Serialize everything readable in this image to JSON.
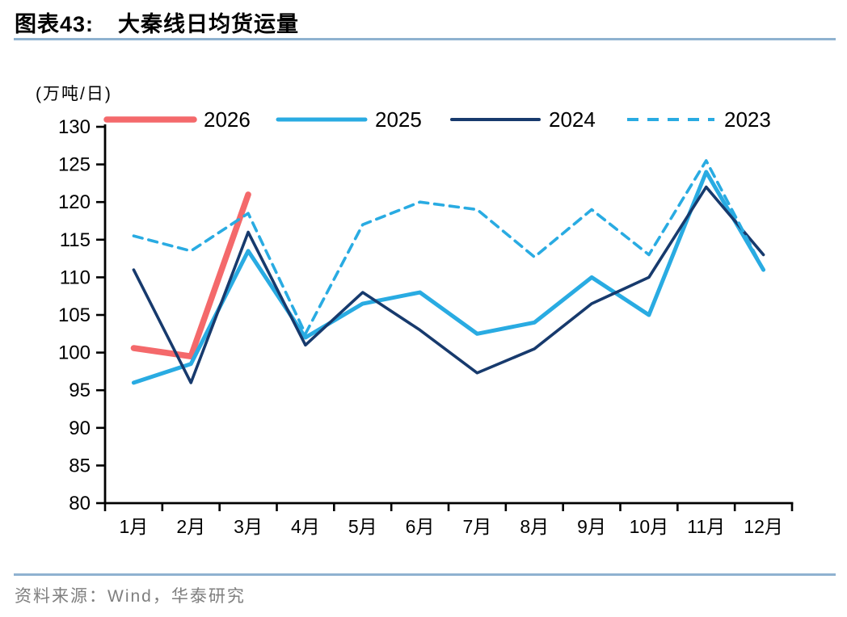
{
  "header": {
    "figure_label": "图表43:",
    "title": "大秦线日均货运量"
  },
  "footer": {
    "source": "资料来源：Wind，华泰研究"
  },
  "accent_rule_color": "#8FB2D0",
  "chart_data": {
    "type": "line",
    "title": "大秦线日均货运量",
    "unit_label": "(万吨/日)",
    "xlabel": "",
    "ylabel": "万吨/日",
    "categories": [
      "1月",
      "2月",
      "3月",
      "4月",
      "5月",
      "6月",
      "7月",
      "8月",
      "9月",
      "10月",
      "11月",
      "12月"
    ],
    "ylim": [
      80,
      130
    ],
    "ytick_step": 5,
    "grid": false,
    "legend_position": "top",
    "series": [
      {
        "name": "2026",
        "color": "#F4696B",
        "width": 7.5,
        "dash": null,
        "values": [
          100.6,
          99.5,
          121
        ]
      },
      {
        "name": "2025",
        "color": "#29ABE2",
        "width": 5,
        "dash": null,
        "values": [
          96,
          98.5,
          113.5,
          102,
          106.5,
          108,
          102.5,
          104,
          110,
          105,
          124,
          111
        ]
      },
      {
        "name": "2024",
        "color": "#173A6D",
        "width": 3.6,
        "dash": null,
        "values": [
          111,
          96,
          116,
          101,
          108,
          103,
          97.3,
          100.5,
          106.5,
          110,
          122,
          113
        ]
      },
      {
        "name": "2023",
        "color": "#29ABE2",
        "width": 3.6,
        "dash": "11,8",
        "values": [
          115.5,
          113.5,
          118.5,
          102.5,
          117,
          120,
          119,
          112.7,
          119,
          113,
          125.5,
          111
        ]
      }
    ]
  }
}
